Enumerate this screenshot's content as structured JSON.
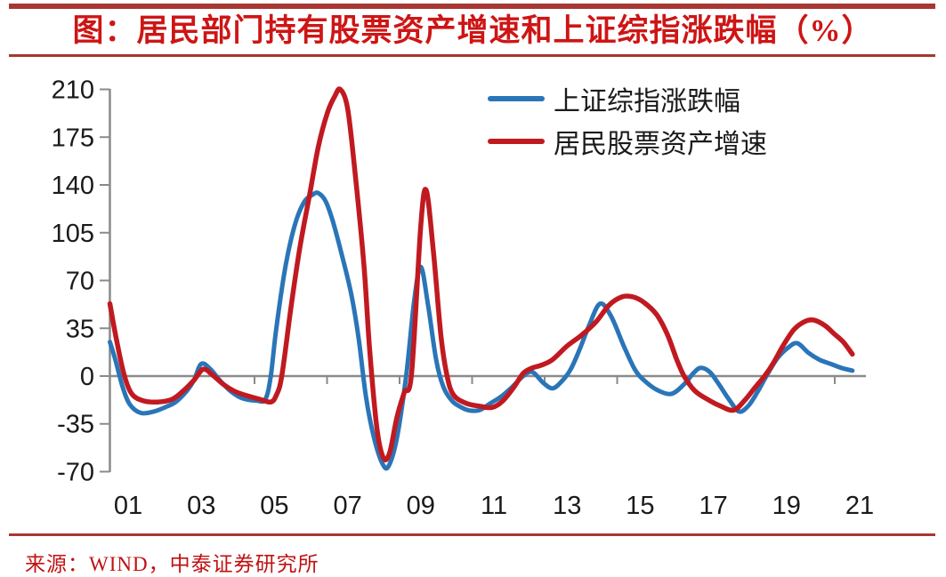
{
  "header": {
    "title": "图：居民部门持有股票资产增速和上证综指涨跌幅（%）"
  },
  "footer": {
    "source": "来源：WIND，中泰证券研究所"
  },
  "colors": {
    "rule_red": "#A83732",
    "title_red": "#CE1515",
    "source_red": "#C01212",
    "axis_gray": "#8A8A8A",
    "label_color": "#1A1A1A",
    "sse_blue": "#2A75B8",
    "household_red": "#C01A20"
  },
  "chart_data": {
    "type": "line",
    "title": "图：居民部门持有股票资产增速和上证综指涨跌幅（%）",
    "xlabel": "",
    "ylabel": "",
    "unit": "%",
    "x_axis": {
      "tick_labels": [
        "01",
        "03",
        "05",
        "07",
        "09",
        "11",
        "13",
        "15",
        "17",
        "19",
        "21"
      ],
      "domain_years": [
        0.5,
        20.8
      ]
    },
    "y_axis": {
      "tick_values": [
        210,
        175,
        140,
        105,
        70,
        35,
        0,
        -35,
        -70
      ],
      "min": -70,
      "max": 210,
      "grid": "zero-line-only"
    },
    "legend": {
      "position": "top-right-inside",
      "entries": [
        "上证综指涨跌幅",
        "居民股票资产增速"
      ]
    },
    "series": [
      {
        "name": "上证综指涨跌幅",
        "color": "#2A75B8",
        "points": [
          [
            0.5,
            25
          ],
          [
            0.65,
            12
          ],
          [
            0.85,
            -8
          ],
          [
            1.05,
            -21
          ],
          [
            1.35,
            -27
          ],
          [
            1.7,
            -26
          ],
          [
            2.0,
            -23
          ],
          [
            2.3,
            -19
          ],
          [
            2.6,
            -11
          ],
          [
            2.8,
            -3
          ],
          [
            3.0,
            9
          ],
          [
            3.25,
            5
          ],
          [
            3.5,
            -3
          ],
          [
            3.8,
            -11
          ],
          [
            4.1,
            -16
          ],
          [
            4.5,
            -18
          ],
          [
            4.75,
            -17
          ],
          [
            4.9,
            0
          ],
          [
            5.05,
            35
          ],
          [
            5.3,
            80
          ],
          [
            5.55,
            110
          ],
          [
            5.8,
            127
          ],
          [
            6.05,
            133
          ],
          [
            6.2,
            134
          ],
          [
            6.4,
            128
          ],
          [
            6.6,
            113
          ],
          [
            6.85,
            88
          ],
          [
            7.1,
            60
          ],
          [
            7.3,
            28
          ],
          [
            7.5,
            -15
          ],
          [
            7.72,
            -45
          ],
          [
            7.95,
            -64
          ],
          [
            8.12,
            -66
          ],
          [
            8.35,
            -45
          ],
          [
            8.6,
            0
          ],
          [
            8.82,
            55
          ],
          [
            9.0,
            80
          ],
          [
            9.2,
            52
          ],
          [
            9.42,
            12
          ],
          [
            9.62,
            -8
          ],
          [
            9.85,
            -18
          ],
          [
            10.05,
            -22
          ],
          [
            10.3,
            -25
          ],
          [
            10.6,
            -25
          ],
          [
            10.9,
            -20
          ],
          [
            11.2,
            -15
          ],
          [
            11.5,
            -8
          ],
          [
            11.8,
            0
          ],
          [
            12.05,
            3
          ],
          [
            12.35,
            -5
          ],
          [
            12.6,
            -9
          ],
          [
            12.85,
            -4
          ],
          [
            13.1,
            5
          ],
          [
            13.35,
            20
          ],
          [
            13.6,
            37
          ],
          [
            13.9,
            53
          ],
          [
            14.2,
            44
          ],
          [
            14.55,
            22
          ],
          [
            14.85,
            5
          ],
          [
            15.1,
            -3
          ],
          [
            15.45,
            -10
          ],
          [
            15.85,
            -13
          ],
          [
            16.2,
            -6
          ],
          [
            16.45,
            2
          ],
          [
            16.65,
            6
          ],
          [
            16.9,
            3
          ],
          [
            17.15,
            -6
          ],
          [
            17.45,
            -18
          ],
          [
            17.7,
            -26
          ],
          [
            17.95,
            -22
          ],
          [
            18.2,
            -12
          ],
          [
            18.45,
            0
          ],
          [
            18.75,
            13
          ],
          [
            19.05,
            21
          ],
          [
            19.3,
            24
          ],
          [
            19.6,
            17
          ],
          [
            19.9,
            12
          ],
          [
            20.2,
            9
          ],
          [
            20.5,
            6
          ],
          [
            20.8,
            4
          ]
        ]
      },
      {
        "name": "居民股票资产增速",
        "color": "#C01A20",
        "points": [
          [
            0.5,
            53
          ],
          [
            0.7,
            24
          ],
          [
            0.9,
            0
          ],
          [
            1.1,
            -13
          ],
          [
            1.4,
            -18
          ],
          [
            1.8,
            -19
          ],
          [
            2.2,
            -17
          ],
          [
            2.5,
            -11
          ],
          [
            2.8,
            -3
          ],
          [
            3.05,
            5
          ],
          [
            3.3,
            1
          ],
          [
            3.6,
            -6
          ],
          [
            3.9,
            -11
          ],
          [
            4.2,
            -14
          ],
          [
            4.6,
            -17
          ],
          [
            4.9,
            -19
          ],
          [
            5.05,
            -14
          ],
          [
            5.2,
            0
          ],
          [
            5.45,
            50
          ],
          [
            5.7,
            95
          ],
          [
            5.95,
            131
          ],
          [
            6.2,
            168
          ],
          [
            6.45,
            193
          ],
          [
            6.65,
            205
          ],
          [
            6.8,
            210
          ],
          [
            7.0,
            196
          ],
          [
            7.2,
            150
          ],
          [
            7.45,
            80
          ],
          [
            7.6,
            20
          ],
          [
            7.8,
            -38
          ],
          [
            7.98,
            -60
          ],
          [
            8.15,
            -56
          ],
          [
            8.35,
            -30
          ],
          [
            8.55,
            -12
          ],
          [
            8.75,
            2
          ],
          [
            9.0,
            110
          ],
          [
            9.15,
            136
          ],
          [
            9.35,
            90
          ],
          [
            9.55,
            30
          ],
          [
            9.72,
            0
          ],
          [
            9.9,
            -14
          ],
          [
            10.25,
            -20
          ],
          [
            10.6,
            -22
          ],
          [
            10.95,
            -23
          ],
          [
            11.25,
            -18
          ],
          [
            11.55,
            -8
          ],
          [
            11.8,
            2
          ],
          [
            12.05,
            6
          ],
          [
            12.3,
            8
          ],
          [
            12.6,
            12
          ],
          [
            13.0,
            22
          ],
          [
            13.4,
            30
          ],
          [
            13.8,
            40
          ],
          [
            14.15,
            52
          ],
          [
            14.5,
            58
          ],
          [
            14.8,
            58
          ],
          [
            15.1,
            54
          ],
          [
            15.45,
            45
          ],
          [
            15.75,
            30
          ],
          [
            16.0,
            12
          ],
          [
            16.2,
            0
          ],
          [
            16.5,
            -11
          ],
          [
            16.9,
            -18
          ],
          [
            17.2,
            -22
          ],
          [
            17.55,
            -25
          ],
          [
            17.85,
            -18
          ],
          [
            18.15,
            -8
          ],
          [
            18.4,
            0
          ],
          [
            18.65,
            10
          ],
          [
            18.9,
            22
          ],
          [
            19.2,
            34
          ],
          [
            19.5,
            40
          ],
          [
            19.75,
            41
          ],
          [
            20.05,
            37
          ],
          [
            20.3,
            31
          ],
          [
            20.55,
            25
          ],
          [
            20.8,
            16
          ]
        ]
      }
    ]
  }
}
